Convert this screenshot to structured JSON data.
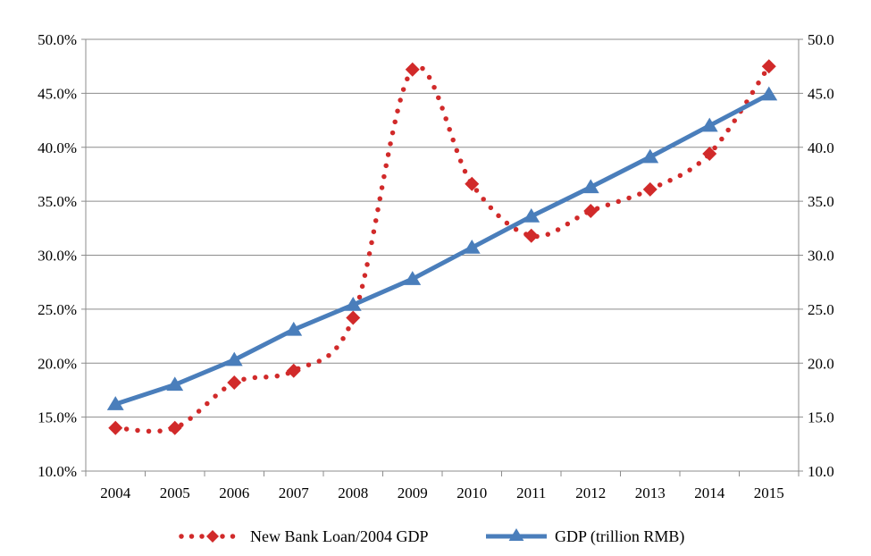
{
  "chart_data": {
    "type": "line",
    "title": "",
    "categories": [
      "2004",
      "2005",
      "2006",
      "2007",
      "2008",
      "2009",
      "2010",
      "2011",
      "2012",
      "2013",
      "2014",
      "2015"
    ],
    "y_left": {
      "min": 10,
      "max": 50,
      "step": 5,
      "ticks": [
        "10.0%",
        "15.0%",
        "20.0%",
        "25.0%",
        "30.0%",
        "35.0%",
        "40.0%",
        "45.0%",
        "50.0%"
      ]
    },
    "y_right": {
      "min": 10,
      "max": 50,
      "step": 5,
      "ticks": [
        "10.0",
        "15.0",
        "20.0",
        "25.0",
        "30.0",
        "35.0",
        "40.0",
        "45.0",
        "50.0"
      ]
    },
    "grid": true,
    "legend_position": "bottom",
    "series": [
      {
        "name": "New Bank Loan/2004 GDP",
        "axis": "left",
        "unit": "%",
        "style": "dotted",
        "marker": "diamond",
        "color": "#d12a2a",
        "values": [
          14.0,
          14.0,
          18.2,
          19.3,
          24.2,
          47.2,
          36.6,
          31.8,
          34.1,
          36.1,
          39.4,
          47.5
        ]
      },
      {
        "name": "GDP (trillion RMB)",
        "axis": "right",
        "unit": "trillion RMB",
        "style": "solid",
        "marker": "triangle",
        "color": "#4a7ebb",
        "values": [
          16.2,
          18.0,
          20.3,
          23.1,
          25.4,
          27.8,
          30.7,
          33.6,
          36.3,
          39.1,
          42.0,
          44.9
        ]
      }
    ]
  }
}
